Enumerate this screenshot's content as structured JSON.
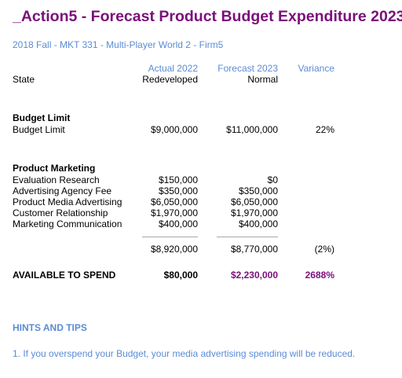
{
  "page": {
    "title": "_Action5 - Forecast Product Budget Expenditure 2023",
    "subtitle": "2018 Fall - MKT 331 - Multi-Player World 2 - Firm5"
  },
  "table": {
    "header": {
      "actual_line1": "Actual 2022",
      "forecast_line1": "Forecast 2023",
      "variance": "Variance",
      "state_label": "State",
      "actual_state": "Redeveloped",
      "forecast_state": "Normal"
    },
    "budget_section": {
      "title": "Budget Limit",
      "row": {
        "label": "Budget Limit",
        "actual": "$9,000,000",
        "forecast": "$11,000,000",
        "variance": "22%"
      }
    },
    "marketing_section": {
      "title": "Product Marketing",
      "rows": [
        {
          "label": "Evaluation Research",
          "actual": "$150,000",
          "forecast": "$0"
        },
        {
          "label": "Advertising Agency Fee",
          "actual": "$350,000",
          "forecast": "$350,000"
        },
        {
          "label": "Product Media Advertising",
          "actual": "$6,050,000",
          "forecast": "$6,050,000"
        },
        {
          "label": "Customer Relationship",
          "actual": "$1,970,000",
          "forecast": "$1,970,000"
        },
        {
          "label": "Marketing Communication",
          "actual": "$400,000",
          "forecast": "$400,000"
        }
      ]
    },
    "total": {
      "actual": "$8,920,000",
      "forecast": "$8,770,000",
      "variance": "(2%)"
    },
    "available": {
      "label": "AVAILABLE TO SPEND",
      "actual": "$80,000",
      "forecast": "$2,230,000",
      "variance": "2688%"
    }
  },
  "hints": {
    "title": "HINTS AND TIPS",
    "items": [
      "1. If you overspend your Budget, your media advertising spending will be reduced."
    ]
  },
  "colors": {
    "title": "#7a0f7a",
    "accent_blue": "#5b8bd6",
    "divider": "#a9a9a9"
  }
}
